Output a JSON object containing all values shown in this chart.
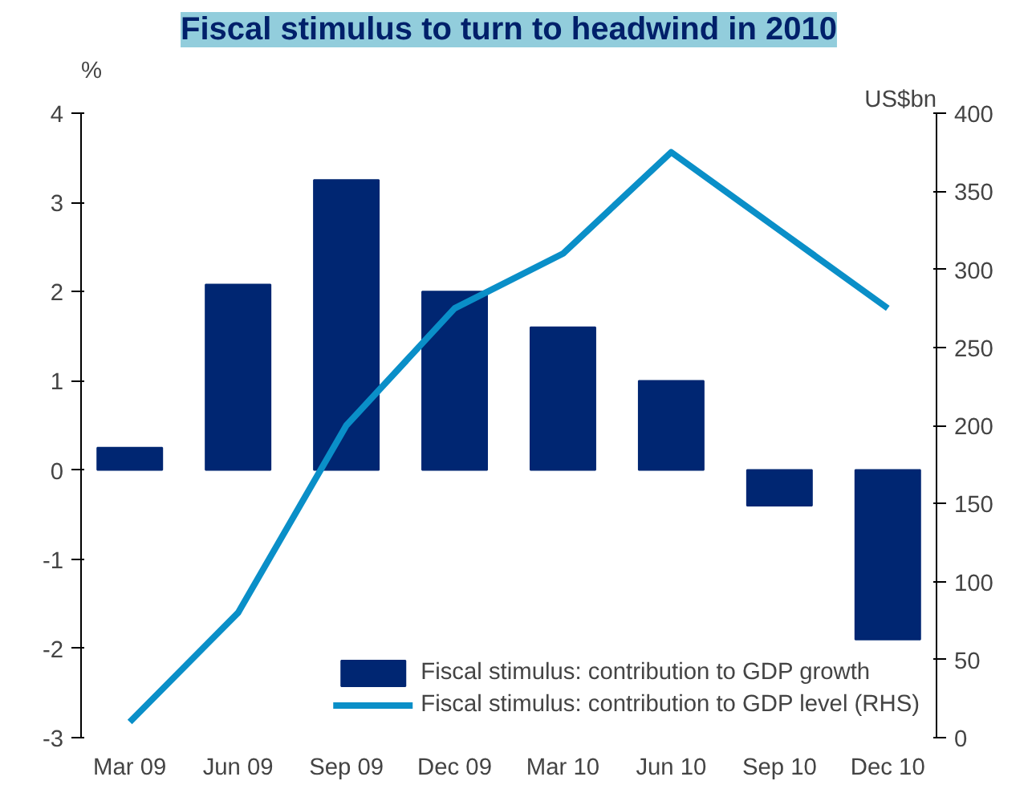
{
  "chart_data": {
    "type": "bar",
    "title": "Fiscal stimulus to turn to headwind in 2010",
    "ylabel": "%",
    "y2label": "US$bn",
    "categories": [
      "Mar 09",
      "Jun 09",
      "Sep 09",
      "Dec 09",
      "Mar 10",
      "Jun 10",
      "Sep 10",
      "Dec 10"
    ],
    "series": [
      {
        "name": "Fiscal stimulus: contribution to GDP growth",
        "color": "#002672",
        "values": [
          0.25,
          2.08,
          3.25,
          2.0,
          1.6,
          1.0,
          -0.4,
          -1.9
        ]
      },
      {
        "name": "Fiscal stimulus: contribution to GDP level (RHS)",
        "type": "line",
        "axis": "y2",
        "color": "#0a8fc8",
        "values": [
          10,
          80,
          200,
          275,
          310,
          375,
          325,
          275
        ]
      }
    ],
    "ylim": [
      -3,
      4
    ],
    "yticks": [
      -3,
      -2,
      -1,
      0,
      1,
      2,
      3,
      4
    ],
    "y2lim": [
      0,
      400
    ],
    "y2ticks": [
      0,
      50,
      100,
      150,
      200,
      250,
      300,
      350,
      400
    ],
    "grid": false,
    "legend": "bottom right"
  }
}
